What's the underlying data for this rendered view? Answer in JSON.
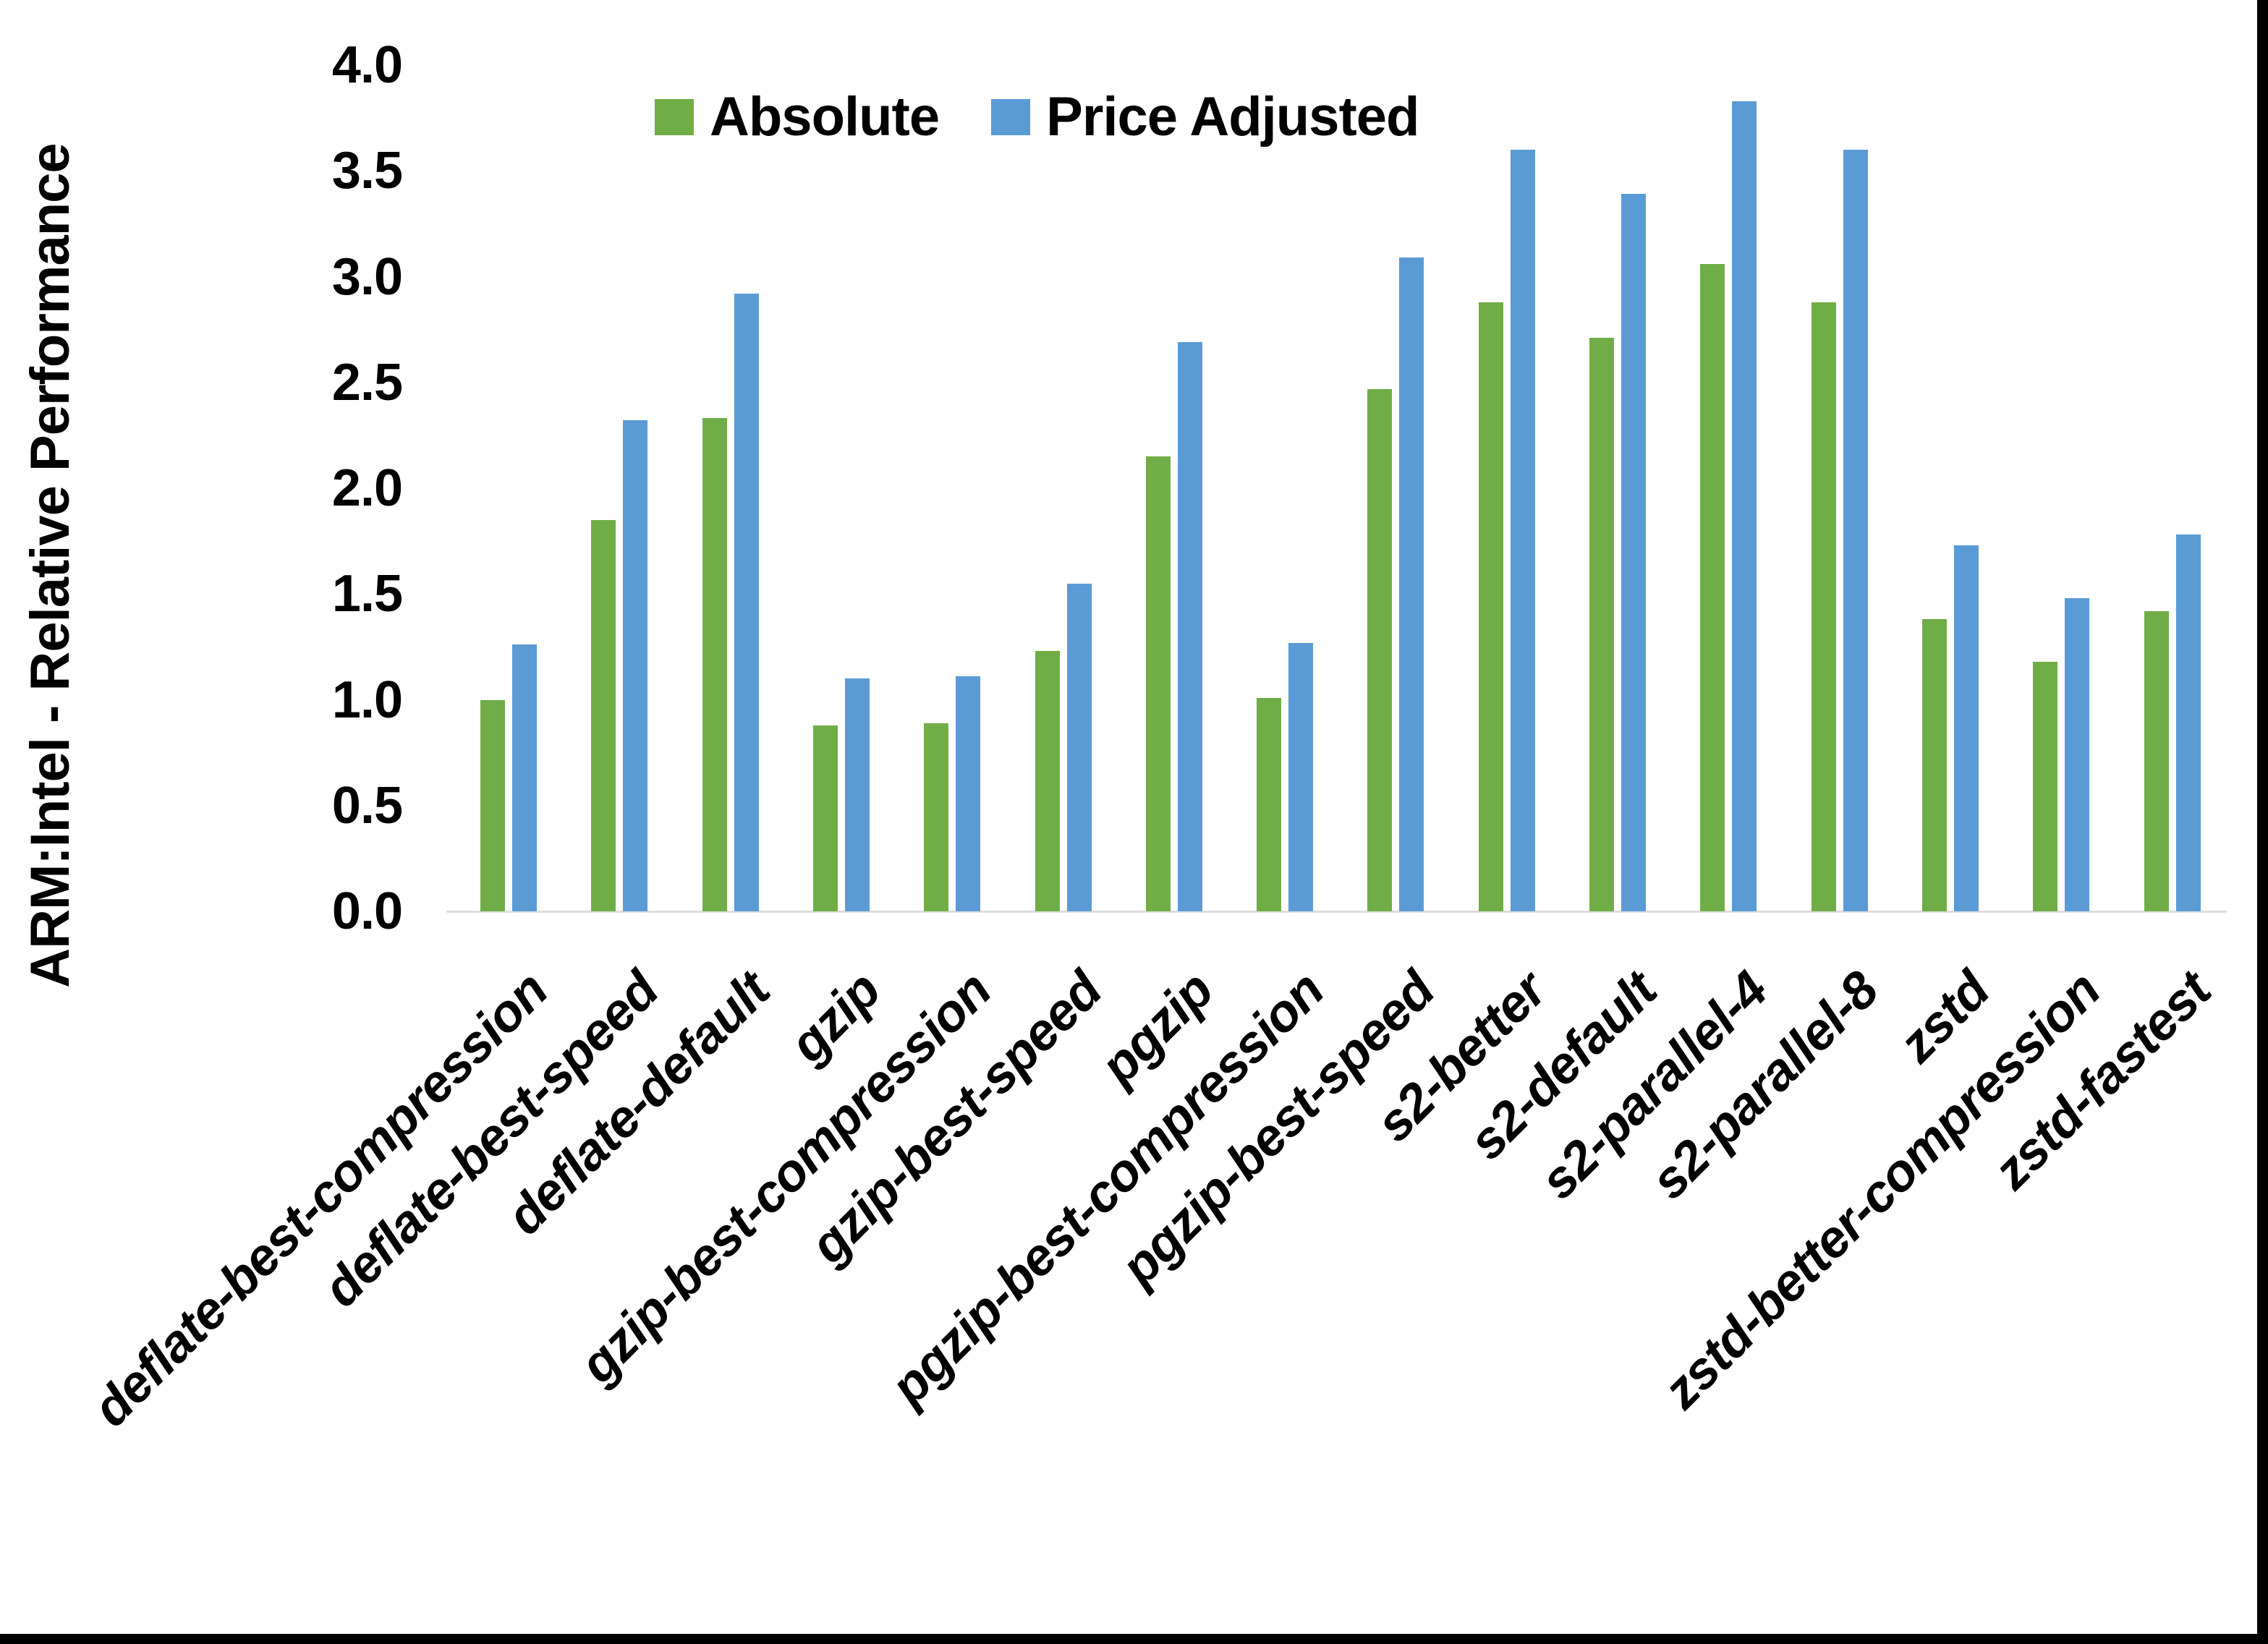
{
  "frame": {
    "background": "#ffffff",
    "right_edge_color": "#000000",
    "bottom_edge_color": "#000000"
  },
  "chart_data": {
    "type": "bar",
    "title": "",
    "xlabel": "",
    "ylabel": "ARM:Intel - Relative Performance",
    "ylim": [
      0.0,
      4.0
    ],
    "ytick_step": 0.5,
    "yticks": [
      "0.0",
      "0.5",
      "1.0",
      "1.5",
      "2.0",
      "2.5",
      "3.0",
      "3.5",
      "4.0"
    ],
    "grid": false,
    "legend_position": "top-center",
    "axis_line_color": "#dedede",
    "categories": [
      "deflate-best-compression",
      "deflate-best-speed",
      "deflate-default",
      "gzip",
      "gzip-best-compression",
      "gzip-best-speed",
      "pgzip",
      "pgzip-best-compression",
      "pgzip-best-speed",
      "s2-better",
      "s2-default",
      "s2-parallel-4",
      "s2-parallel-8",
      "zstd",
      "zstd-better-compression",
      "zstd-fastest"
    ],
    "series": [
      {
        "name": "Absolute",
        "color": "#70AD47",
        "values": [
          1.0,
          1.85,
          2.33,
          0.88,
          0.89,
          1.23,
          2.15,
          1.01,
          2.47,
          2.88,
          2.71,
          3.06,
          2.88,
          1.38,
          1.18,
          1.42
        ]
      },
      {
        "name": "Price Adjusted",
        "color": "#5B9BD5",
        "values": [
          1.26,
          2.32,
          2.92,
          1.1,
          1.11,
          1.55,
          2.69,
          1.27,
          3.09,
          3.6,
          3.39,
          3.83,
          3.6,
          1.73,
          1.48,
          1.78
        ]
      }
    ]
  }
}
